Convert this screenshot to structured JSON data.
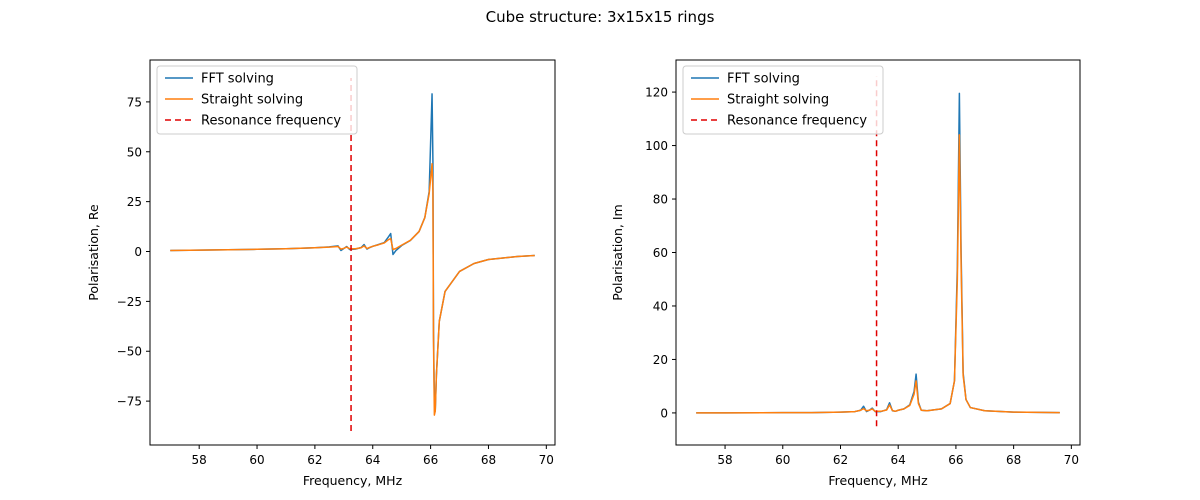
{
  "figure": {
    "suptitle": "Cube structure: 3x15x15 rings"
  },
  "colors": {
    "fft": "#1f77b4",
    "straight": "#ff7f0e",
    "resonance": "#e00000"
  },
  "chart_data": [
    {
      "type": "line",
      "title": "",
      "xlabel": "Frequency, MHz",
      "ylabel": "Polarisation, Re",
      "xlim": [
        56.3,
        70.3
      ],
      "ylim": [
        -97,
        96
      ],
      "xticks": [
        58,
        60,
        62,
        64,
        66,
        68,
        70
      ],
      "yticks": [
        -75,
        -50,
        -25,
        0,
        25,
        50,
        75
      ],
      "grid": false,
      "legend": "top-left",
      "series": [
        {
          "name": "FFT solving",
          "color": "#1f77b4",
          "style": "solid",
          "x": [
            57.0,
            58.0,
            59.0,
            60.0,
            61.0,
            62.0,
            62.5,
            62.8,
            62.9,
            63.0,
            63.1,
            63.2,
            63.4,
            63.6,
            63.7,
            63.8,
            63.9,
            64.0,
            64.2,
            64.4,
            64.55,
            64.62,
            64.7,
            64.8,
            65.0,
            65.3,
            65.6,
            65.8,
            65.95,
            66.05,
            66.08,
            66.1,
            66.13,
            66.16,
            66.2,
            66.3,
            66.5,
            67.0,
            67.5,
            68.0,
            69.0,
            69.6
          ],
          "y": [
            0.5,
            0.7,
            0.9,
            1.1,
            1.4,
            1.9,
            2.3,
            2.8,
            0.5,
            1.5,
            2.5,
            1.0,
            1.2,
            2.0,
            3.5,
            1.2,
            2.0,
            2.6,
            3.5,
            4.5,
            7.5,
            9.0,
            -1.5,
            0.5,
            3.0,
            5.5,
            10.0,
            17.0,
            30.0,
            79.0,
            45.0,
            -40.0,
            -75.0,
            -80.0,
            -62.0,
            -35.0,
            -20.0,
            -10.0,
            -6.0,
            -4.0,
            -2.5,
            -2.0
          ]
        },
        {
          "name": "Straight solving",
          "color": "#ff7f0e",
          "style": "solid",
          "x": [
            57.0,
            58.0,
            59.0,
            60.0,
            61.0,
            62.0,
            62.5,
            62.8,
            62.9,
            63.0,
            63.1,
            63.2,
            63.4,
            63.6,
            63.7,
            63.8,
            63.9,
            64.0,
            64.2,
            64.4,
            64.55,
            64.62,
            64.7,
            64.8,
            65.0,
            65.3,
            65.6,
            65.8,
            65.95,
            66.05,
            66.08,
            66.1,
            66.13,
            66.16,
            66.2,
            66.3,
            66.5,
            67.0,
            67.5,
            68.0,
            69.0,
            69.6
          ],
          "y": [
            0.5,
            0.7,
            0.9,
            1.1,
            1.4,
            1.9,
            2.2,
            2.5,
            1.2,
            1.6,
            2.2,
            1.4,
            1.4,
            1.9,
            2.8,
            1.5,
            2.1,
            2.6,
            3.4,
            4.3,
            6.0,
            6.5,
            1.0,
            1.5,
            3.2,
            5.6,
            10.0,
            17.0,
            29.0,
            44.0,
            30.0,
            -45.0,
            -82.0,
            -80.0,
            -62.0,
            -35.0,
            -20.0,
            -10.0,
            -6.0,
            -4.0,
            -2.5,
            -2.0
          ]
        },
        {
          "name": "Resonance frequency",
          "color": "#e00000",
          "style": "dashed",
          "x": [
            63.25,
            63.25
          ],
          "y": [
            -90.0,
            87.0
          ]
        }
      ]
    },
    {
      "type": "line",
      "title": "",
      "xlabel": "Frequency, MHz",
      "ylabel": "Polarisation, Im",
      "xlim": [
        56.3,
        70.3
      ],
      "ylim": [
        -12,
        132
      ],
      "xticks": [
        58,
        60,
        62,
        64,
        66,
        68,
        70
      ],
      "yticks": [
        0,
        20,
        40,
        60,
        80,
        100,
        120
      ],
      "grid": false,
      "legend": "top-left",
      "series": [
        {
          "name": "FFT solving",
          "color": "#1f77b4",
          "style": "solid",
          "x": [
            57.0,
            58.0,
            60.0,
            61.0,
            62.0,
            62.5,
            62.7,
            62.8,
            62.9,
            63.0,
            63.1,
            63.2,
            63.4,
            63.6,
            63.7,
            63.8,
            63.9,
            64.0,
            64.2,
            64.4,
            64.55,
            64.62,
            64.7,
            64.8,
            65.0,
            65.5,
            65.8,
            65.95,
            66.05,
            66.12,
            66.18,
            66.25,
            66.35,
            66.5,
            67.0,
            68.0,
            69.6
          ],
          "y": [
            0.0,
            0.0,
            0.1,
            0.1,
            0.3,
            0.5,
            1.0,
            2.5,
            0.5,
            1.0,
            1.8,
            0.5,
            0.5,
            1.2,
            3.8,
            0.8,
            0.6,
            1.0,
            1.5,
            3.0,
            8.0,
            14.5,
            4.0,
            1.0,
            0.8,
            1.5,
            3.5,
            12.0,
            55.0,
            119.5,
            60.0,
            15.0,
            5.0,
            2.0,
            0.8,
            0.3,
            0.1
          ]
        },
        {
          "name": "Straight solving",
          "color": "#ff7f0e",
          "style": "solid",
          "x": [
            57.0,
            58.0,
            60.0,
            61.0,
            62.0,
            62.5,
            62.7,
            62.8,
            62.9,
            63.0,
            63.1,
            63.2,
            63.4,
            63.6,
            63.7,
            63.8,
            63.9,
            64.0,
            64.2,
            64.4,
            64.55,
            64.62,
            64.7,
            64.8,
            65.0,
            65.5,
            65.8,
            65.95,
            66.05,
            66.12,
            66.18,
            66.25,
            66.35,
            66.5,
            67.0,
            68.0,
            69.6
          ],
          "y": [
            0.0,
            0.0,
            0.1,
            0.1,
            0.3,
            0.5,
            1.0,
            1.6,
            0.8,
            1.0,
            1.5,
            0.6,
            0.6,
            1.1,
            3.0,
            0.9,
            0.6,
            1.0,
            1.5,
            2.8,
            7.0,
            12.0,
            3.5,
            1.0,
            0.8,
            1.5,
            3.5,
            12.0,
            50.0,
            104.0,
            55.0,
            14.0,
            5.0,
            2.0,
            0.8,
            0.3,
            0.1
          ]
        },
        {
          "name": "Resonance frequency",
          "color": "#e00000",
          "style": "dashed",
          "x": [
            63.25,
            63.25
          ],
          "y": [
            -5.0,
            126.0
          ]
        }
      ]
    }
  ]
}
